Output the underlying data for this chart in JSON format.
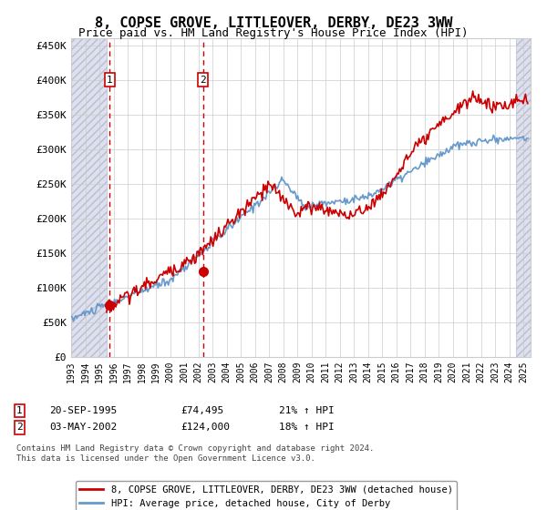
{
  "title": "8, COPSE GROVE, LITTLEOVER, DERBY, DE23 3WW",
  "subtitle": "Price paid vs. HM Land Registry's House Price Index (HPI)",
  "ylim": [
    0,
    460000
  ],
  "yticks": [
    0,
    50000,
    100000,
    150000,
    200000,
    250000,
    300000,
    350000,
    400000,
    450000
  ],
  "ytick_labels": [
    "£0",
    "£50K",
    "£100K",
    "£150K",
    "£200K",
    "£250K",
    "£300K",
    "£350K",
    "£400K",
    "£450K"
  ],
  "xlim_start": 1993,
  "xlim_end": 2025.5,
  "xticks": [
    1993,
    1994,
    1995,
    1996,
    1997,
    1998,
    1999,
    2000,
    2001,
    2002,
    2003,
    2004,
    2005,
    2006,
    2007,
    2008,
    2009,
    2010,
    2011,
    2012,
    2013,
    2014,
    2015,
    2016,
    2017,
    2018,
    2019,
    2020,
    2021,
    2022,
    2023,
    2024,
    2025
  ],
  "hatch_left_end": 1995.5,
  "hatch_right_start": 2024.5,
  "sale1_x": 1995.72,
  "sale1_y": 74495,
  "sale1_label": "1",
  "sale1_date": "20-SEP-1995",
  "sale1_price": "£74,495",
  "sale1_hpi": "21% ↑ HPI",
  "sale2_x": 2002.33,
  "sale2_y": 124000,
  "sale2_label": "2",
  "sale2_date": "03-MAY-2002",
  "sale2_price": "£124,000",
  "sale2_hpi": "18% ↑ HPI",
  "line_color_red": "#cc0000",
  "line_color_blue": "#6699cc",
  "grid_color": "#cccccc",
  "hatch_facecolor": "#dde0ee",
  "hatch_edgecolor": "#bbbbcc",
  "legend_label_red": "8, COPSE GROVE, LITTLEOVER, DERBY, DE23 3WW (detached house)",
  "legend_label_blue": "HPI: Average price, detached house, City of Derby",
  "footnote": "Contains HM Land Registry data © Crown copyright and database right 2024.\nThis data is licensed under the Open Government Licence v3.0.",
  "title_fontsize": 11,
  "subtitle_fontsize": 9
}
